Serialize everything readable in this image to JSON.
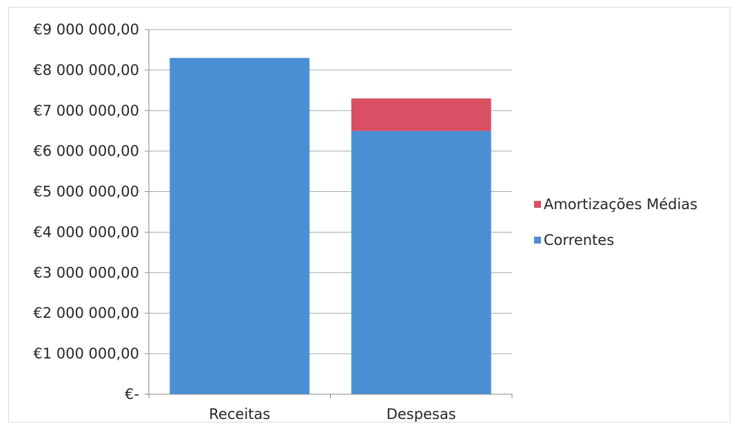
{
  "chart_data": {
    "type": "bar",
    "stacked": true,
    "categories": [
      "Receitas",
      "Despesas"
    ],
    "series": [
      {
        "name": "Correntes",
        "color": "#4a8fd4",
        "values": [
          8300000,
          6500000
        ]
      },
      {
        "name": "Amortizações Médias",
        "color": "#d94f63",
        "values": [
          0,
          800000
        ]
      }
    ],
    "ylim": [
      0,
      9000000
    ],
    "ytick_values": [
      0,
      1000000,
      2000000,
      3000000,
      4000000,
      5000000,
      6000000,
      7000000,
      8000000,
      9000000
    ],
    "ytick_labels": [
      "€-",
      "€1 000 000,00",
      "€2 000 000,00",
      "€3 000 000,00",
      "€4 000 000,00",
      "€5 000 000,00",
      "€6 000 000,00",
      "€7 000 000,00",
      "€8 000 000,00",
      "€9 000 000,00"
    ],
    "grid": true,
    "legend": {
      "placement": "right",
      "order": [
        "Amortizações Médias",
        "Correntes"
      ]
    },
    "title": "",
    "xlabel": "",
    "ylabel": ""
  }
}
